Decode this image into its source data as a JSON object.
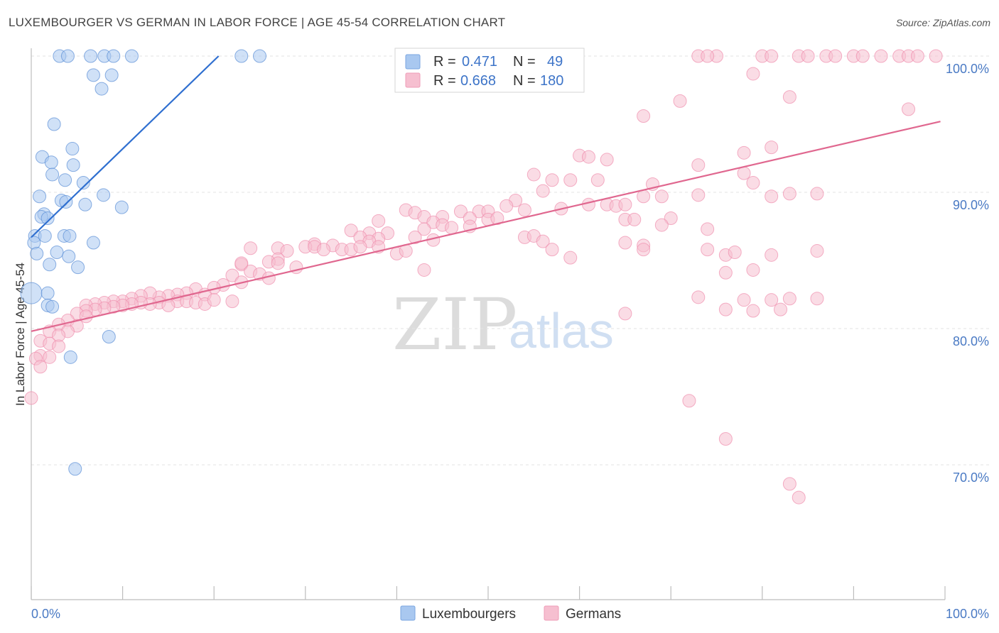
{
  "header": {
    "title": "LUXEMBOURGER VS GERMAN IN LABOR FORCE | AGE 45-54 CORRELATION CHART",
    "source": "Source: ZipAtlas.com"
  },
  "watermark": {
    "zip": "ZIP",
    "atlas": "atlas"
  },
  "legend": {
    "r_label": "R =",
    "n_label": "N =",
    "rows": [
      {
        "r": "0.471",
        "n": "49",
        "color": "#a9c8f0"
      },
      {
        "r": "0.668",
        "n": "180",
        "color": "#f6bfd0"
      }
    ]
  },
  "bottom_legend": [
    "Luxembourgers",
    "Germans"
  ],
  "chart_data": {
    "type": "scatter",
    "title": "LUXEMBOURGER VS GERMAN IN LABOR FORCE | AGE 45-54 CORRELATION CHART",
    "xlabel": "",
    "ylabel": "In Labor Force | Age 45-54",
    "xlim": [
      0,
      100
    ],
    "ylim": [
      60,
      100
    ],
    "x_tick_labels": [
      "0.0%",
      "100.0%"
    ],
    "y_ticks": [
      70,
      80,
      90,
      100
    ],
    "y_tick_labels": [
      "70.0%",
      "80.0%",
      "90.0%",
      "100.0%"
    ],
    "grid": true,
    "legend_position": "top-center",
    "series": [
      {
        "name": "Luxembourgers",
        "color": "#a9c8f0",
        "stroke": "#5b8fd6",
        "r": 0.471,
        "n": 49,
        "trendline": {
          "x": [
            0,
            20.5
          ],
          "y": [
            86.7,
            100
          ]
        },
        "points": [
          [
            3.1,
            100
          ],
          [
            4.0,
            100
          ],
          [
            6.5,
            100
          ],
          [
            8.0,
            100
          ],
          [
            9.0,
            100
          ],
          [
            11,
            100
          ],
          [
            23,
            100
          ],
          [
            25,
            100
          ],
          [
            6.8,
            98.6
          ],
          [
            8.8,
            98.6
          ],
          [
            7.7,
            97.6
          ],
          [
            2.5,
            95.0
          ],
          [
            4.5,
            93.2
          ],
          [
            1.2,
            92.6
          ],
          [
            2.2,
            92.2
          ],
          [
            4.6,
            92.0
          ],
          [
            2.3,
            91.3
          ],
          [
            3.7,
            90.9
          ],
          [
            5.7,
            90.7
          ],
          [
            0.9,
            89.7
          ],
          [
            7.9,
            89.8
          ],
          [
            3.3,
            89.4
          ],
          [
            3.8,
            89.3
          ],
          [
            5.9,
            89.1
          ],
          [
            9.9,
            88.9
          ],
          [
            1.4,
            88.4
          ],
          [
            1.1,
            88.2
          ],
          [
            1.8,
            88.1
          ],
          [
            0.4,
            86.8
          ],
          [
            1.5,
            86.8
          ],
          [
            3.6,
            86.8
          ],
          [
            4.2,
            86.8
          ],
          [
            0.3,
            86.3
          ],
          [
            6.8,
            86.3
          ],
          [
            2.8,
            85.6
          ],
          [
            0.6,
            85.5
          ],
          [
            4.1,
            85.3
          ],
          [
            2.0,
            84.7
          ],
          [
            5.1,
            84.5
          ],
          [
            0.0,
            82.6
          ],
          [
            1.8,
            82.6
          ],
          [
            1.8,
            81.7
          ],
          [
            2.3,
            81.6
          ],
          [
            8.5,
            79.4
          ],
          [
            4.3,
            77.9
          ],
          [
            4.8,
            69.7
          ]
        ]
      },
      {
        "name": "Germans",
        "color": "#f6bfd0",
        "stroke": "#ef8fae",
        "r": 0.668,
        "n": 180,
        "trendline": {
          "x": [
            0,
            99.5
          ],
          "y": [
            79.8,
            95.2
          ]
        },
        "points": [
          [
            73,
            100
          ],
          [
            75,
            100
          ],
          [
            80,
            100
          ],
          [
            81,
            100
          ],
          [
            84,
            100
          ],
          [
            85,
            100
          ],
          [
            87,
            100
          ],
          [
            88,
            100
          ],
          [
            90,
            100
          ],
          [
            91,
            100
          ],
          [
            93,
            100
          ],
          [
            95,
            100
          ],
          [
            96,
            100
          ],
          [
            97,
            100
          ],
          [
            99,
            100
          ],
          [
            74,
            100
          ],
          [
            79,
            98.7
          ],
          [
            83,
            97.0
          ],
          [
            71,
            96.7
          ],
          [
            67,
            95.6
          ],
          [
            96,
            96.1
          ],
          [
            81,
            93.3
          ],
          [
            78,
            92.9
          ],
          [
            60,
            92.7
          ],
          [
            61,
            92.6
          ],
          [
            63,
            92.4
          ],
          [
            73,
            92.0
          ],
          [
            55,
            91.3
          ],
          [
            78,
            91.4
          ],
          [
            57,
            90.9
          ],
          [
            59,
            90.9
          ],
          [
            62,
            90.9
          ],
          [
            68,
            90.6
          ],
          [
            79,
            90.7
          ],
          [
            56,
            90.1
          ],
          [
            73,
            89.8
          ],
          [
            81,
            89.7
          ],
          [
            67,
            89.7
          ],
          [
            69,
            89.7
          ],
          [
            53,
            89.4
          ],
          [
            52,
            89.0
          ],
          [
            54,
            88.7
          ],
          [
            58,
            88.8
          ],
          [
            61,
            89.1
          ],
          [
            63,
            89.1
          ],
          [
            64,
            89.0
          ],
          [
            65,
            89.1
          ],
          [
            41,
            88.7
          ],
          [
            42,
            88.5
          ],
          [
            47,
            88.6
          ],
          [
            49,
            88.6
          ],
          [
            50,
            88.6
          ],
          [
            43,
            88.2
          ],
          [
            45,
            88.2
          ],
          [
            48,
            88.1
          ],
          [
            50,
            88.0
          ],
          [
            51,
            88.1
          ],
          [
            65,
            88.0
          ],
          [
            66,
            88.0
          ],
          [
            70,
            88.1
          ],
          [
            38,
            87.9
          ],
          [
            44,
            87.8
          ],
          [
            45,
            87.6
          ],
          [
            48,
            87.5
          ],
          [
            69,
            87.6
          ],
          [
            74,
            87.3
          ],
          [
            35,
            87.2
          ],
          [
            37,
            87.0
          ],
          [
            39,
            87.0
          ],
          [
            43,
            87.3
          ],
          [
            46,
            87.4
          ],
          [
            36,
            86.7
          ],
          [
            38,
            86.6
          ],
          [
            42,
            86.7
          ],
          [
            44,
            86.5
          ],
          [
            54,
            86.7
          ],
          [
            55,
            86.8
          ],
          [
            56,
            86.4
          ],
          [
            65,
            86.3
          ],
          [
            67,
            86.1
          ],
          [
            31,
            86.2
          ],
          [
            33,
            86.1
          ],
          [
            37,
            86.4
          ],
          [
            24,
            85.9
          ],
          [
            27,
            85.9
          ],
          [
            28,
            85.7
          ],
          [
            30,
            86.0
          ],
          [
            31,
            86.0
          ],
          [
            32,
            85.8
          ],
          [
            34,
            85.8
          ],
          [
            35,
            85.8
          ],
          [
            36,
            86.0
          ],
          [
            38,
            86.0
          ],
          [
            40,
            85.5
          ],
          [
            41,
            85.7
          ],
          [
            57,
            85.8
          ],
          [
            67,
            85.8
          ],
          [
            74,
            85.8
          ],
          [
            76,
            85.4
          ],
          [
            59,
            85.2
          ],
          [
            27,
            85.1
          ],
          [
            26,
            84.9
          ],
          [
            23,
            84.7
          ],
          [
            29,
            84.5
          ],
          [
            43,
            84.3
          ],
          [
            24,
            84.2
          ],
          [
            25,
            84.0
          ],
          [
            26,
            83.7
          ],
          [
            22,
            83.9
          ],
          [
            23,
            83.4
          ],
          [
            21,
            83.2
          ],
          [
            20,
            83.0
          ],
          [
            18,
            82.9
          ],
          [
            19,
            82.5
          ],
          [
            17,
            82.6
          ],
          [
            16,
            82.5
          ],
          [
            15,
            82.4
          ],
          [
            14,
            82.3
          ],
          [
            13,
            82.6
          ],
          [
            12,
            82.4
          ],
          [
            11,
            82.2
          ],
          [
            10,
            82.0
          ],
          [
            9,
            82.0
          ],
          [
            8,
            81.9
          ],
          [
            7,
            81.8
          ],
          [
            6,
            81.7
          ],
          [
            16,
            82.0
          ],
          [
            14,
            81.9
          ],
          [
            13,
            81.8
          ],
          [
            12,
            81.9
          ],
          [
            11,
            81.8
          ],
          [
            10,
            81.7
          ],
          [
            9,
            81.6
          ],
          [
            8,
            81.5
          ],
          [
            7,
            81.4
          ],
          [
            6,
            81.3
          ],
          [
            15,
            81.7
          ],
          [
            17,
            82.0
          ],
          [
            18,
            81.9
          ],
          [
            19,
            81.8
          ],
          [
            20,
            82.1
          ],
          [
            22,
            82.0
          ],
          [
            5,
            81.1
          ],
          [
            6,
            80.9
          ],
          [
            4,
            80.6
          ],
          [
            5,
            80.2
          ],
          [
            3,
            80.3
          ],
          [
            4,
            79.8
          ],
          [
            2,
            79.8
          ],
          [
            3,
            79.5
          ],
          [
            1,
            79.1
          ],
          [
            2,
            78.9
          ],
          [
            3,
            78.7
          ],
          [
            1,
            78.0
          ],
          [
            0.5,
            77.8
          ],
          [
            2,
            77.9
          ],
          [
            1,
            77.2
          ],
          [
            0,
            74.9
          ],
          [
            78,
            82.1
          ],
          [
            81,
            82.1
          ],
          [
            83,
            82.2
          ],
          [
            86,
            82.2
          ],
          [
            76,
            81.4
          ],
          [
            79,
            81.3
          ],
          [
            82,
            81.4
          ],
          [
            65,
            81.1
          ],
          [
            83,
            89.9
          ],
          [
            86,
            89.9
          ],
          [
            81,
            85.4
          ],
          [
            86,
            85.7
          ],
          [
            77,
            85.6
          ],
          [
            73,
            82.3
          ],
          [
            72,
            74.7
          ],
          [
            76,
            71.9
          ],
          [
            83,
            68.6
          ],
          [
            84,
            67.6
          ],
          [
            76,
            84.1
          ],
          [
            79,
            84.3
          ],
          [
            23,
            84.8
          ],
          [
            27,
            84.8
          ]
        ]
      }
    ]
  }
}
